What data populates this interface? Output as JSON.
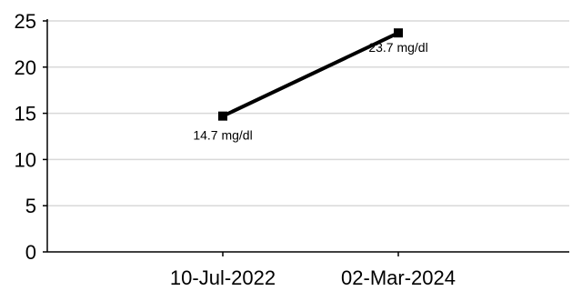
{
  "chart_data": {
    "type": "line",
    "categories": [
      "10-Jul-2022",
      "02-Mar-2024"
    ],
    "series": [
      {
        "values": [
          14.7,
          23.7
        ],
        "data_labels": [
          "14.7 mg/dl",
          "23.7 mg/dl"
        ]
      }
    ],
    "title": "",
    "xlabel": "",
    "ylabel": "",
    "ylim": [
      0,
      25
    ],
    "yticks": [
      "0",
      "5",
      "10",
      "15",
      "20",
      "25"
    ],
    "grid": "horizontal",
    "legend": "none",
    "colors": {
      "line": "#000000",
      "grid": "#d9d9d9",
      "axis": "#000000"
    }
  }
}
